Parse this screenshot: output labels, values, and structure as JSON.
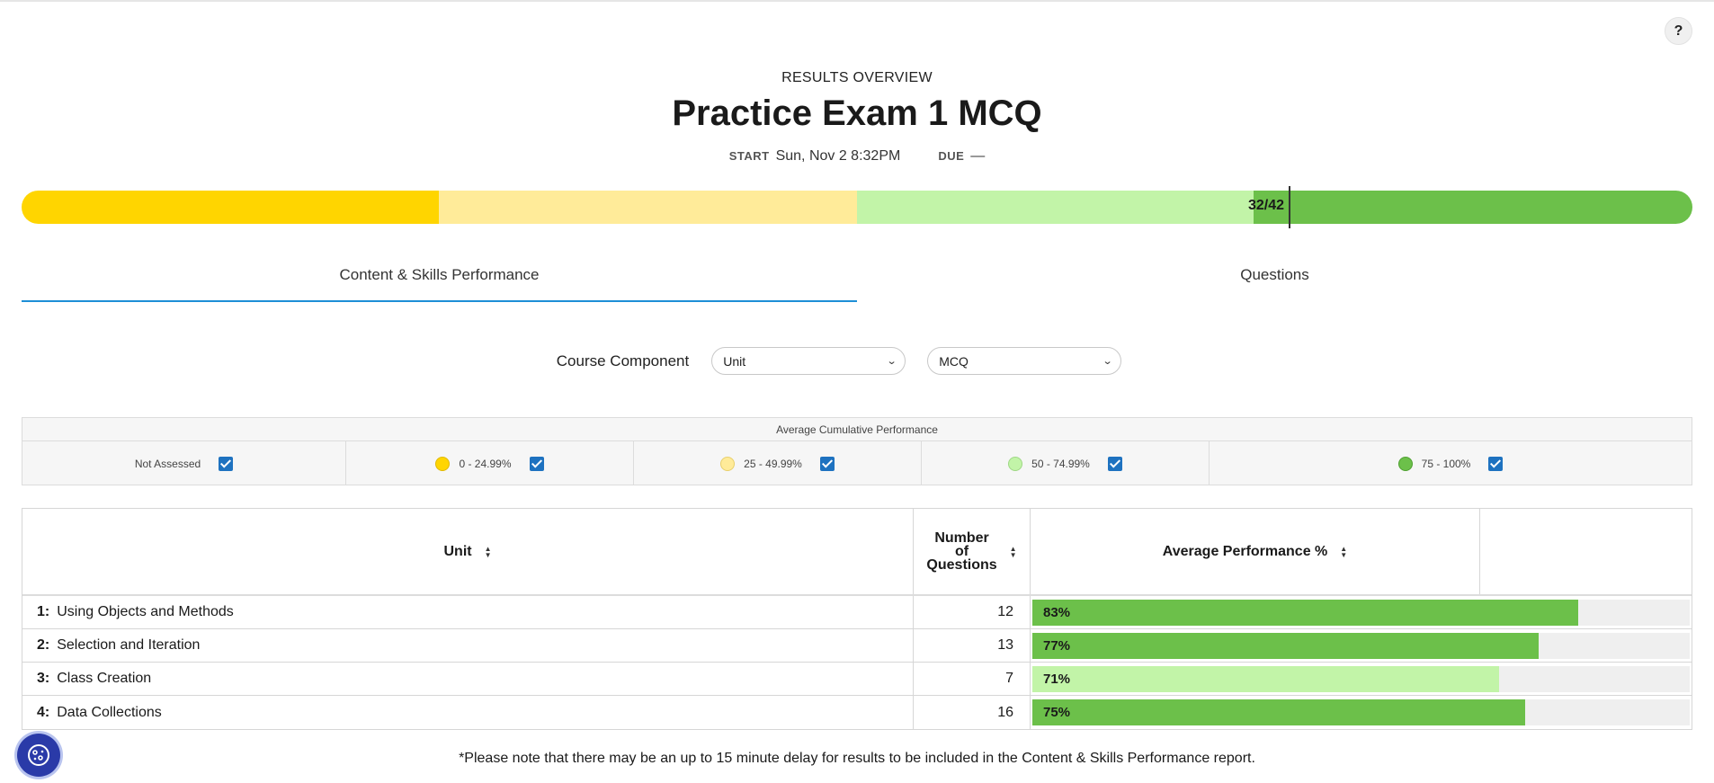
{
  "help": {
    "label": "?"
  },
  "header": {
    "eyebrow": "RESULTS OVERVIEW",
    "title": "Practice Exam 1 MCQ",
    "start_label": "START",
    "start_value": "Sun, Nov 2 8:32PM",
    "due_label": "DUE",
    "due_value": "—"
  },
  "score": {
    "text": "32/42",
    "correct": 32,
    "total": 42
  },
  "tabs": [
    {
      "label": "Content & Skills Performance",
      "active": true
    },
    {
      "label": "Questions",
      "active": false
    }
  ],
  "filters": {
    "label": "Course Component",
    "unit_select": "Unit",
    "type_select": "MCQ"
  },
  "legend": {
    "title": "Average Cumulative Performance",
    "items": [
      {
        "label": "Not Assessed",
        "checked": true
      },
      {
        "label": "0 - 24.99%",
        "color": "#ffd500",
        "checked": true
      },
      {
        "label": "25 - 49.99%",
        "color": "#ffeb99",
        "checked": true
      },
      {
        "label": "50 - 74.99%",
        "color": "#c2f4a8",
        "checked": true
      },
      {
        "label": "75 - 100%",
        "color": "#6cc04a",
        "checked": true
      }
    ]
  },
  "table": {
    "headers": {
      "unit": "Unit",
      "num_line1": "Number",
      "num_line2": "of",
      "num_line3": "Questions",
      "perf": "Average Performance %"
    },
    "rows": [
      {
        "num": "1:",
        "name": "Using Objects and Methods",
        "questions": "12",
        "perf_label": "83%",
        "perf": 83,
        "color": "#6cc04a"
      },
      {
        "num": "2:",
        "name": "Selection and Iteration",
        "questions": "13",
        "perf_label": "77%",
        "perf": 77,
        "color": "#6cc04a"
      },
      {
        "num": "3:",
        "name": "Class Creation",
        "questions": "7",
        "perf_label": "71%",
        "perf": 71,
        "color": "#c2f4a8"
      },
      {
        "num": "4:",
        "name": "Data Collections",
        "questions": "16",
        "perf_label": "75%",
        "perf": 75,
        "color": "#6cc04a"
      }
    ]
  },
  "footnote": "*Please note that there may be an up to 15 minute delay for results to be included in the Content & Skills Performance report.",
  "icons": {
    "help": "question-icon",
    "cookie": "cookie-settings-icon",
    "sort": "sort-icon",
    "dropdown": "chevron-down-icon",
    "checkbox": "checkbox-checked-icon"
  }
}
